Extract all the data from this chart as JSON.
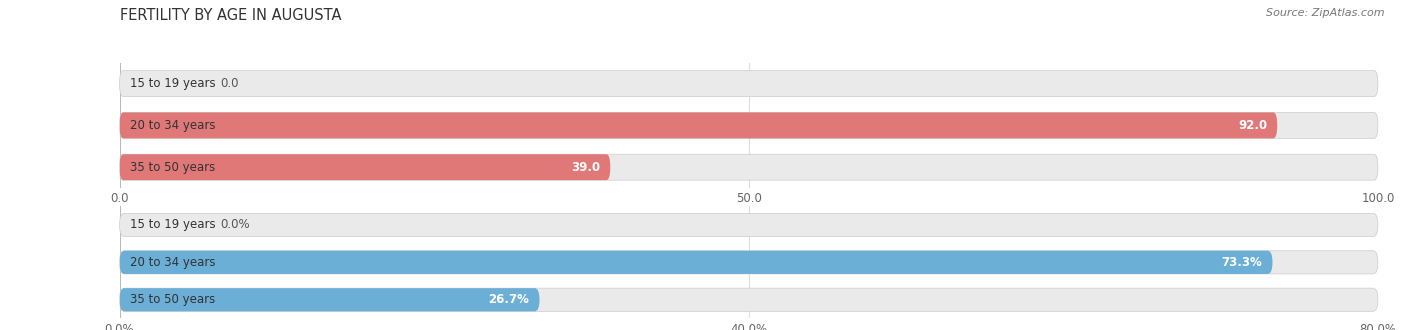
{
  "title": "FERTILITY BY AGE IN AUGUSTA",
  "source": "Source: ZipAtlas.com",
  "top_chart": {
    "categories": [
      "15 to 19 years",
      "20 to 34 years",
      "35 to 50 years"
    ],
    "values": [
      0.0,
      92.0,
      39.0
    ],
    "xlim": [
      0,
      100
    ],
    "xticks": [
      0.0,
      50.0,
      100.0
    ],
    "xtick_labels": [
      "0.0",
      "50.0",
      "100.0"
    ],
    "bar_color": "#E07878",
    "bar_bg_color": "#EAEAEA",
    "bar_height": 0.62
  },
  "bottom_chart": {
    "categories": [
      "15 to 19 years",
      "20 to 34 years",
      "35 to 50 years"
    ],
    "values": [
      0.0,
      73.3,
      26.7
    ],
    "xlim": [
      0,
      80
    ],
    "xticks": [
      0.0,
      40.0,
      80.0
    ],
    "xtick_labels": [
      "0.0%",
      "40.0%",
      "80.0%"
    ],
    "bar_color": "#6BAED6",
    "bar_bg_color": "#EAEAEA",
    "bar_height": 0.62
  },
  "bg_color": "#FFFFFF",
  "fig_width": 14.06,
  "fig_height": 3.3,
  "dpi": 100,
  "label_font_size": 8.5,
  "value_font_size": 8.5
}
